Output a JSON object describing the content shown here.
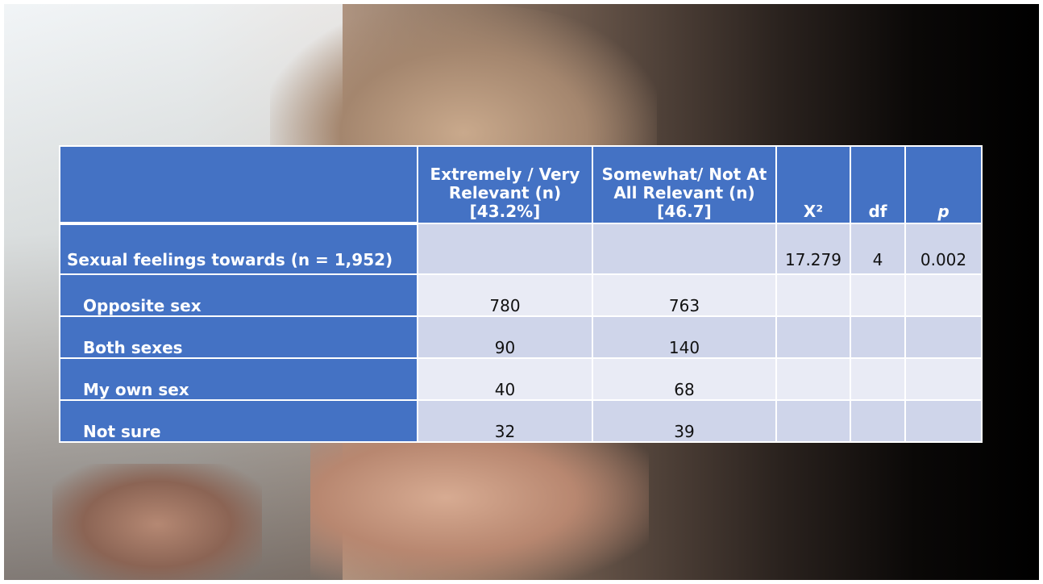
{
  "table": {
    "columns": [
      "Extremely / Very Relevant (n) [43.2%]",
      "Somewhat/ Not At All Relevant (n) [46.7]",
      "X²",
      "df",
      "p"
    ],
    "rows": [
      {
        "label": "Sexual feelings towards (n = 1,952)",
        "chi2": "17.279",
        "df": "4",
        "p": "0.002"
      },
      {
        "label": "Opposite sex",
        "cells": [
          "780",
          "763"
        ]
      },
      {
        "label": "Both sexes",
        "cells": [
          "90",
          "140"
        ]
      },
      {
        "label": "My own sex",
        "cells": [
          "40",
          "68"
        ]
      },
      {
        "label": "Not sure",
        "cells": [
          "32",
          "39"
        ]
      }
    ]
  }
}
